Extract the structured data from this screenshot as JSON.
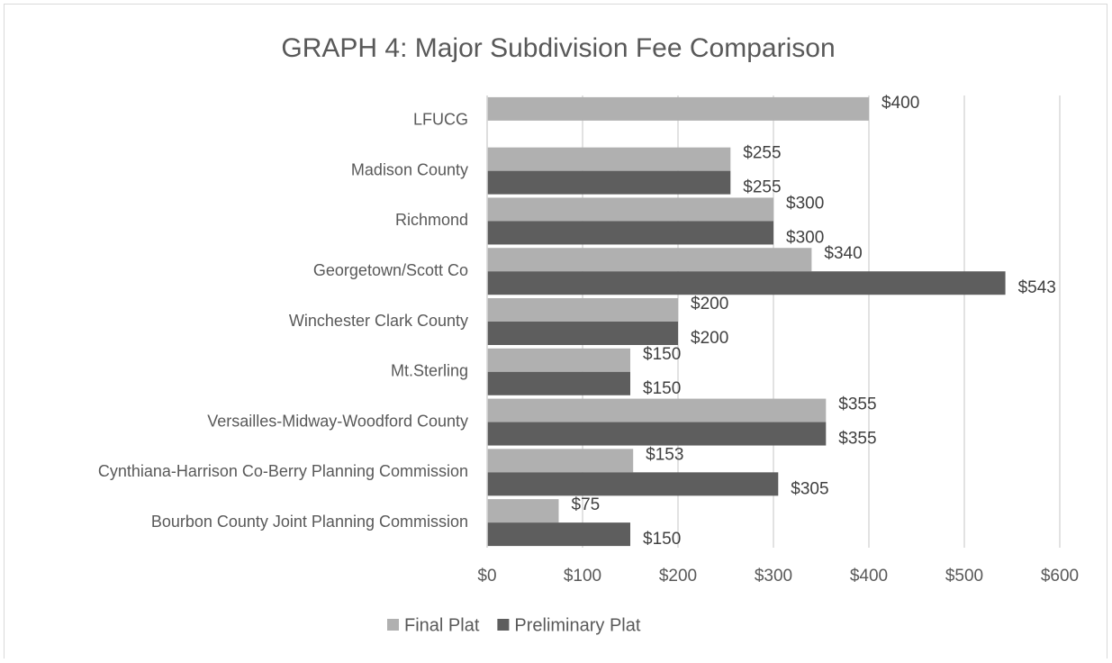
{
  "chart_data": {
    "type": "bar",
    "orientation": "horizontal",
    "title": "GRAPH 4:  Major Subdivision Fee Comparison",
    "categories": [
      "LFUCG",
      "Madison County",
      "Richmond",
      "Georgetown/Scott Co",
      "Winchester  Clark County",
      "Mt.Sterling",
      "Versailles-Midway-Woodford County",
      "Cynthiana-Harrison Co-Berry Planning Commission",
      "Bourbon County Joint Planning Commission"
    ],
    "series": [
      {
        "name": "Final Plat",
        "color": "#b0b0b0",
        "values": [
          400,
          255,
          300,
          340,
          200,
          150,
          355,
          153,
          75
        ],
        "value_labels": [
          "$400",
          "$255",
          "$300",
          "$340",
          "$200",
          "$150",
          "$355",
          "$153",
          "$75"
        ]
      },
      {
        "name": "Preliminary Plat",
        "color": "#5e5e5e",
        "values": [
          null,
          255,
          300,
          543,
          200,
          150,
          355,
          305,
          150
        ],
        "value_labels": [
          null,
          "$255",
          "$300",
          "$543",
          "$200",
          "$150",
          "$355",
          "$305",
          "$150"
        ]
      }
    ],
    "xlim": [
      0,
      600
    ],
    "xticks": [
      {
        "value": 0,
        "label": "$0"
      },
      {
        "value": 100,
        "label": "$100"
      },
      {
        "value": 200,
        "label": "$200"
      },
      {
        "value": 300,
        "label": "$300"
      },
      {
        "value": 400,
        "label": "$400"
      },
      {
        "value": 500,
        "label": "$500"
      },
      {
        "value": 600,
        "label": "$600"
      }
    ],
    "grid": true,
    "legend": "bottom"
  }
}
